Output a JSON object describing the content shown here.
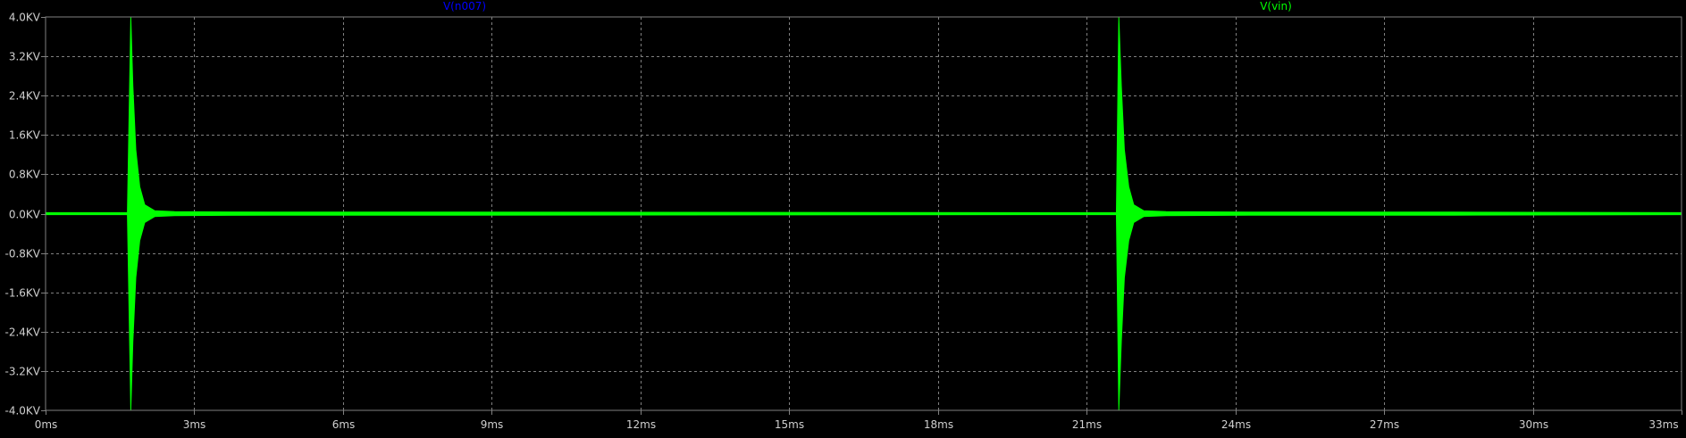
{
  "chart_data": {
    "type": "line",
    "title": "",
    "xlabel": "",
    "ylabel": "",
    "xlim": [
      0,
      33
    ],
    "ylim": [
      -4.0,
      4.0
    ],
    "grid": true,
    "legend_placement": "top",
    "x_ticks": [
      0,
      3,
      6,
      9,
      12,
      15,
      18,
      21,
      24,
      27,
      30,
      33
    ],
    "x_tick_labels": [
      "0ms",
      "3ms",
      "6ms",
      "9ms",
      "12ms",
      "15ms",
      "18ms",
      "21ms",
      "24ms",
      "27ms",
      "30ms",
      "33ms"
    ],
    "y_ticks": [
      4.0,
      3.2,
      2.4,
      1.6,
      0.8,
      0.0,
      -0.8,
      -1.6,
      -2.4,
      -3.2,
      -4.0
    ],
    "y_tick_labels": [
      "4.0KV",
      "3.2KV",
      "2.4KV",
      "1.6KV",
      "0.8KV",
      "0.0KV",
      "-0.8KV",
      "-1.6KV",
      "-2.4KV",
      "-3.2KV",
      "-4.0KV"
    ],
    "series": [
      {
        "name": "V(n007)",
        "color": "#0000ff",
        "values": []
      },
      {
        "name": "V(vin)",
        "color": "#00ff00",
        "envelope_upper": [
          [
            0,
            0.02
          ],
          [
            1.65,
            0.02
          ],
          [
            1.72,
            4.0
          ],
          [
            1.76,
            2.6
          ],
          [
            1.82,
            1.3
          ],
          [
            1.9,
            0.55
          ],
          [
            2.0,
            0.18
          ],
          [
            2.2,
            0.06
          ],
          [
            2.6,
            0.04
          ],
          [
            4.6,
            0.03
          ],
          [
            8.4,
            0.03
          ],
          [
            21.6,
            0.02
          ],
          [
            21.65,
            4.0
          ],
          [
            21.7,
            2.6
          ],
          [
            21.76,
            1.3
          ],
          [
            21.85,
            0.55
          ],
          [
            21.95,
            0.18
          ],
          [
            22.15,
            0.06
          ],
          [
            22.6,
            0.04
          ],
          [
            24.6,
            0.03
          ],
          [
            28.4,
            0.03
          ],
          [
            33,
            0.02
          ]
        ],
        "envelope_lower": [
          [
            0,
            -0.02
          ],
          [
            1.65,
            -0.02
          ],
          [
            1.72,
            -4.0
          ],
          [
            1.76,
            -2.6
          ],
          [
            1.82,
            -1.3
          ],
          [
            1.9,
            -0.55
          ],
          [
            2.0,
            -0.18
          ],
          [
            2.2,
            -0.06
          ],
          [
            2.6,
            -0.04
          ],
          [
            4.6,
            -0.03
          ],
          [
            8.4,
            -0.03
          ],
          [
            21.6,
            -0.02
          ],
          [
            21.65,
            -4.0
          ],
          [
            21.7,
            -2.6
          ],
          [
            21.76,
            -1.3
          ],
          [
            21.85,
            -0.55
          ],
          [
            21.95,
            -0.18
          ],
          [
            22.15,
            -0.06
          ],
          [
            22.6,
            -0.04
          ],
          [
            24.6,
            -0.03
          ],
          [
            28.4,
            -0.03
          ],
          [
            33,
            -0.02
          ]
        ]
      }
    ]
  },
  "colors": {
    "background": "#000000",
    "axis": "#808080",
    "grid": "#808080",
    "tick_label": "#d0d0d0"
  }
}
